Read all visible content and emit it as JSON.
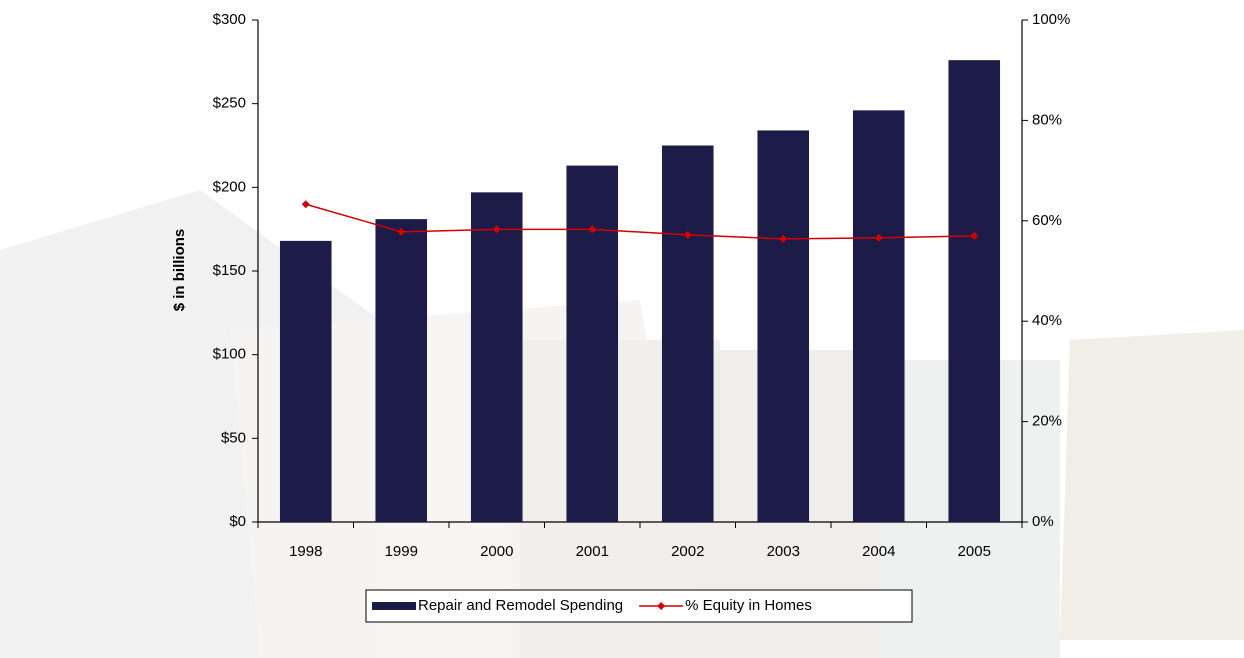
{
  "chart_data": {
    "type": "bar_line",
    "y_axis_title": "$ in billions",
    "categories": [
      "1998",
      "1999",
      "2000",
      "2001",
      "2002",
      "2003",
      "2004",
      "2005"
    ],
    "series": [
      {
        "name": "Repair and Remodel Spending",
        "type": "bar",
        "color": "#1d1b47",
        "values": [
          168,
          181,
          197,
          213,
          225,
          234,
          246,
          276
        ]
      },
      {
        "name": "% Equity in Homes",
        "type": "line",
        "axis": "y2",
        "color": "#d40000",
        "values": [
          63.3,
          57.8,
          58.3,
          58.3,
          57.2,
          56.4,
          56.6,
          57
        ]
      }
    ],
    "ylim": [
      0,
      300
    ],
    "yticks": [
      {
        "value": 0,
        "label": "$0"
      },
      {
        "value": 50,
        "label": "$50"
      },
      {
        "value": 100,
        "label": "$100"
      },
      {
        "value": 150,
        "label": "$150"
      },
      {
        "value": 200,
        "label": "$200"
      },
      {
        "value": 250,
        "label": "$250"
      },
      {
        "value": 300,
        "label": "$300"
      }
    ],
    "y2lim": [
      0,
      100
    ],
    "y2ticks": [
      {
        "value": 0,
        "label": "0%"
      },
      {
        "value": 20,
        "label": "20%"
      },
      {
        "value": 40,
        "label": "40%"
      },
      {
        "value": 60,
        "label": "60%"
      },
      {
        "value": 80,
        "label": "80%"
      },
      {
        "value": 100,
        "label": "100%"
      }
    ],
    "legend": "bottom"
  }
}
